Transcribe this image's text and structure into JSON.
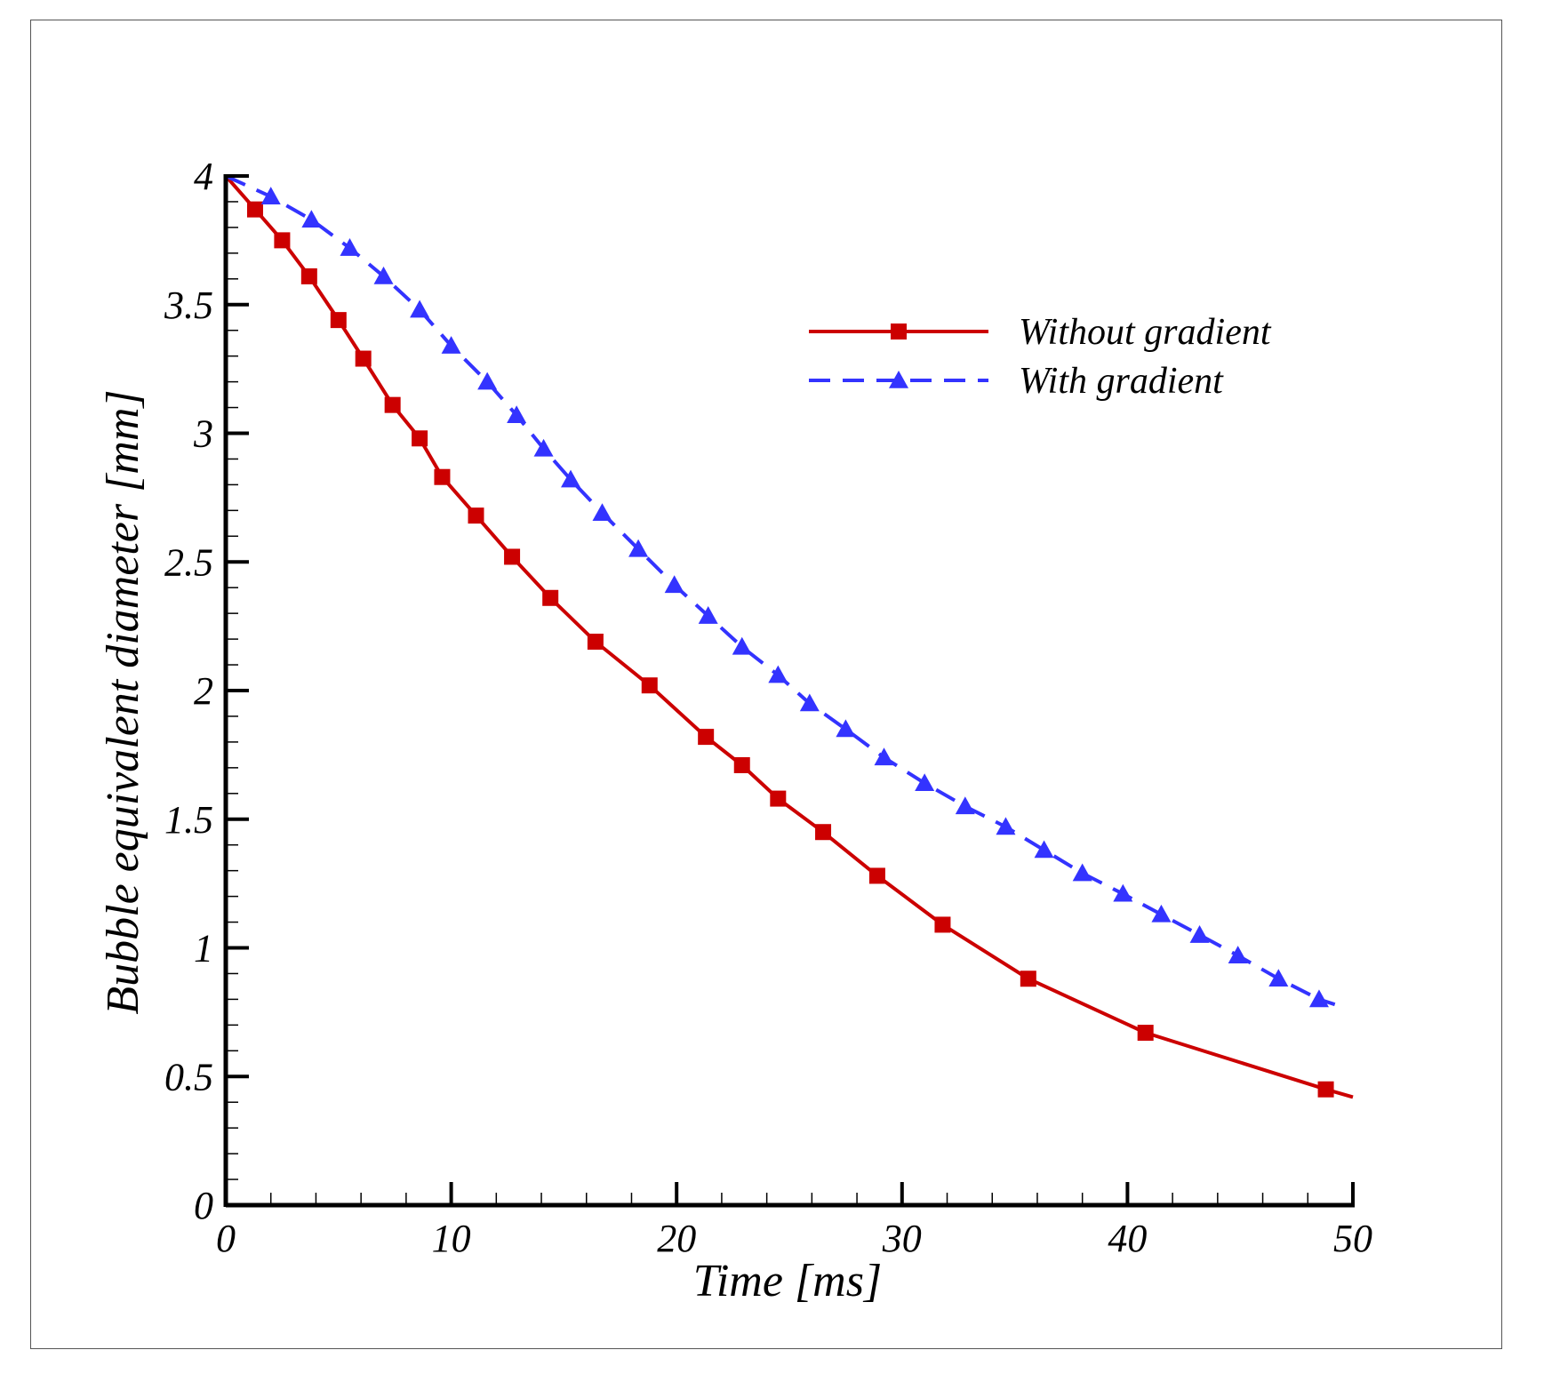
{
  "chart_data": {
    "type": "line",
    "title": "",
    "xlabel": "Time [ms]",
    "ylabel": "Bubble equivalent diameter [mm]",
    "xlim": [
      0,
      50
    ],
    "ylim": [
      0,
      4
    ],
    "xticks": [
      0,
      10,
      20,
      30,
      40,
      50
    ],
    "xtick_labels": [
      "0",
      "10",
      "20",
      "30",
      "40",
      "50"
    ],
    "yticks": [
      0,
      0.5,
      1,
      1.5,
      2,
      2.5,
      3,
      3.5,
      4
    ],
    "ytick_labels": [
      "0",
      "0.5",
      "1",
      "1.5",
      "2",
      "2.5",
      "3",
      "3.5",
      "4"
    ],
    "grid": false,
    "legend_position": "top-right",
    "series": [
      {
        "name": "Without gradient",
        "color": "#cc0000",
        "line_style": "solid",
        "marker": "square",
        "x": [
          0,
          1.3,
          2.5,
          3.7,
          5.0,
          6.1,
          7.4,
          8.6,
          9.6,
          11.1,
          12.7,
          14.4,
          16.4,
          18.8,
          21.3,
          22.9,
          24.5,
          26.5,
          28.9,
          31.8,
          35.6,
          40.8,
          48.8,
          50.0
        ],
        "y": [
          4.0,
          3.87,
          3.75,
          3.61,
          3.44,
          3.29,
          3.11,
          2.98,
          2.83,
          2.68,
          2.52,
          2.36,
          2.19,
          2.02,
          1.82,
          1.71,
          1.58,
          1.45,
          1.28,
          1.09,
          0.88,
          0.67,
          0.45,
          0.42
        ],
        "marker_x": [
          1.3,
          2.5,
          3.7,
          5.0,
          6.1,
          7.4,
          8.6,
          9.6,
          11.1,
          12.7,
          14.4,
          16.4,
          18.8,
          21.3,
          22.9,
          24.5,
          26.5,
          28.9,
          31.8,
          35.6,
          40.8,
          48.8
        ],
        "marker_y": [
          3.87,
          3.75,
          3.61,
          3.44,
          3.29,
          3.11,
          2.98,
          2.83,
          2.68,
          2.52,
          2.36,
          2.19,
          2.02,
          1.82,
          1.71,
          1.58,
          1.45,
          1.28,
          1.09,
          0.88,
          0.67,
          0.45
        ]
      },
      {
        "name": "With gradient",
        "color": "#3333ff",
        "line_style": "dashed",
        "marker": "triangle",
        "x": [
          0,
          2.0,
          3.8,
          5.5,
          7.0,
          8.6,
          10.0,
          11.6,
          12.9,
          14.1,
          15.3,
          16.7,
          18.3,
          19.9,
          21.4,
          22.9,
          24.5,
          25.9,
          27.5,
          29.2,
          31.0,
          32.8,
          34.6,
          36.3,
          38.0,
          39.8,
          41.5,
          43.2,
          44.9,
          46.7,
          48.5,
          49.2
        ],
        "y": [
          4.0,
          3.92,
          3.83,
          3.72,
          3.61,
          3.48,
          3.34,
          3.2,
          3.07,
          2.94,
          2.82,
          2.69,
          2.55,
          2.41,
          2.29,
          2.17,
          2.06,
          1.95,
          1.85,
          1.74,
          1.64,
          1.55,
          1.47,
          1.38,
          1.29,
          1.21,
          1.13,
          1.05,
          0.97,
          0.88,
          0.8,
          0.78
        ],
        "marker_x": [
          2.0,
          3.8,
          5.5,
          7.0,
          8.6,
          10.0,
          11.6,
          12.9,
          14.1,
          15.3,
          16.7,
          18.3,
          19.9,
          21.4,
          22.9,
          24.5,
          25.9,
          27.5,
          29.2,
          31.0,
          32.8,
          34.6,
          36.3,
          38.0,
          39.8,
          41.5,
          43.2,
          44.9,
          46.7,
          48.5
        ],
        "marker_y": [
          3.92,
          3.83,
          3.72,
          3.61,
          3.48,
          3.34,
          3.2,
          3.07,
          2.94,
          2.82,
          2.69,
          2.55,
          2.41,
          2.29,
          2.17,
          2.06,
          1.95,
          1.85,
          1.74,
          1.64,
          1.55,
          1.47,
          1.38,
          1.29,
          1.21,
          1.13,
          1.05,
          0.97,
          0.88,
          0.8
        ]
      }
    ]
  }
}
